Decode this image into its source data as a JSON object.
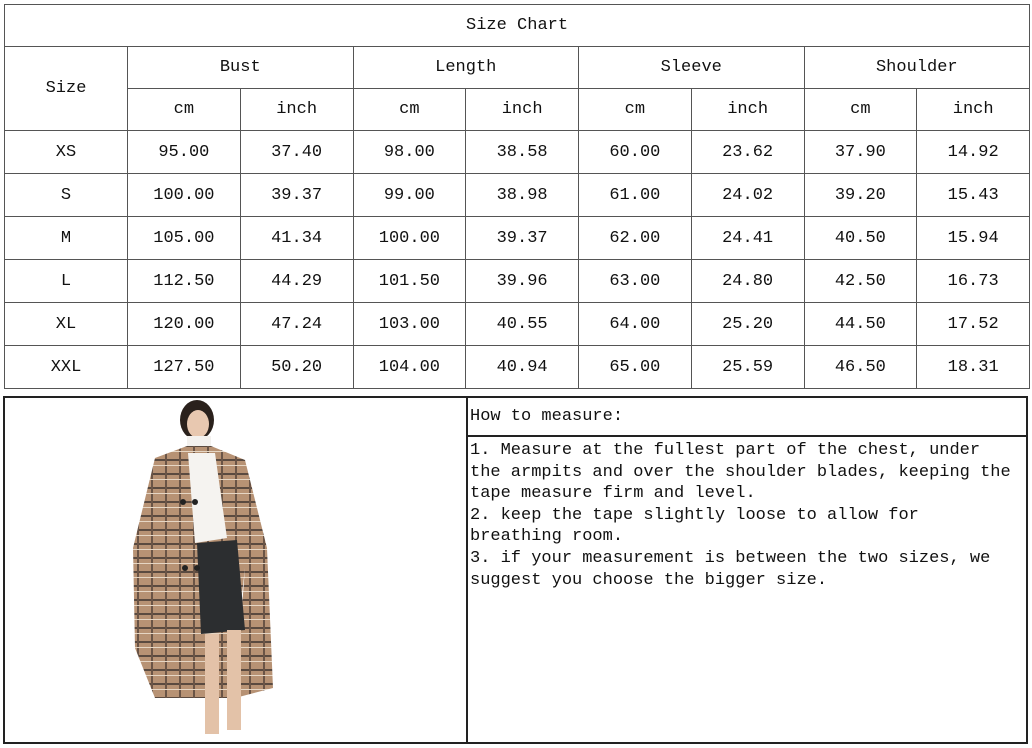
{
  "title": "Size Chart",
  "size_header": "Size",
  "groups": [
    "Bust",
    "Length",
    "Sleeve",
    "Shoulder"
  ],
  "units": [
    "cm",
    "inch"
  ],
  "rows": [
    {
      "size": "XS",
      "values": [
        "95.00",
        "37.40",
        "98.00",
        "38.58",
        "60.00",
        "23.62",
        "37.90",
        "14.92"
      ]
    },
    {
      "size": "S",
      "values": [
        "100.00",
        "39.37",
        "99.00",
        "38.98",
        "61.00",
        "24.02",
        "39.20",
        "15.43"
      ]
    },
    {
      "size": "M",
      "values": [
        "105.00",
        "41.34",
        "100.00",
        "39.37",
        "62.00",
        "24.41",
        "40.50",
        "15.94"
      ]
    },
    {
      "size": "L",
      "values": [
        "112.50",
        "44.29",
        "101.50",
        "39.96",
        "63.00",
        "24.80",
        "42.50",
        "16.73"
      ]
    },
    {
      "size": "XL",
      "values": [
        "120.00",
        "47.24",
        "103.00",
        "40.55",
        "64.00",
        "25.20",
        "44.50",
        "17.52"
      ]
    },
    {
      "size": "XXL",
      "values": [
        "127.50",
        "50.20",
        "104.00",
        "40.94",
        "65.00",
        "25.59",
        "46.50",
        "18.31"
      ]
    }
  ],
  "how_to_measure": {
    "heading": "How to measure:",
    "lines": [
      "1. Measure at the fullest part of the chest, under",
      "the armpits and over the shoulder blades, keeping the",
      "tape measure firm and level.",
      "2. keep the tape slightly loose to allow for",
      "breathing room.",
      "3. if your measurement is between the two sizes, we",
      "suggest you choose the bigger size."
    ]
  },
  "photo": {
    "subject": "model-in-plaid-coat",
    "coat_color": "#b08c6e"
  }
}
